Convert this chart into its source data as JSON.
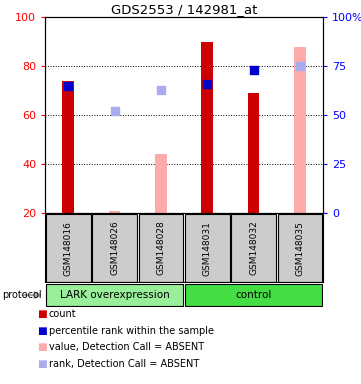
{
  "title": "GDS2553 / 142981_at",
  "samples": [
    "GSM148016",
    "GSM148026",
    "GSM148028",
    "GSM148031",
    "GSM148032",
    "GSM148035"
  ],
  "count_values": [
    74,
    null,
    null,
    90,
    69,
    null
  ],
  "count_color": "#cc0000",
  "percentile_values": [
    65,
    null,
    null,
    66,
    73,
    null
  ],
  "percentile_color": "#0000cc",
  "absent_value_values": [
    null,
    21,
    44,
    null,
    null,
    88
  ],
  "absent_value_color": "#ffaaaa",
  "absent_rank_values": [
    null,
    52,
    63,
    null,
    null,
    75
  ],
  "absent_rank_color": "#aaaaee",
  "ylim_left": [
    20,
    100
  ],
  "ylim_right": [
    0,
    100
  ],
  "yticks_left": [
    20,
    40,
    60,
    80,
    100
  ],
  "yticks_right": [
    0,
    25,
    50,
    75,
    100
  ],
  "yticklabels_right": [
    "0",
    "25",
    "50",
    "75",
    "100%"
  ],
  "bar_width": 0.25,
  "marker_size": 6,
  "group_lark_color": "#99ee99",
  "group_ctrl_color": "#44dd44",
  "sample_box_color": "#cccccc",
  "legend_items": [
    {
      "label": "count",
      "color": "#cc0000"
    },
    {
      "label": "percentile rank within the sample",
      "color": "#0000cc"
    },
    {
      "label": "value, Detection Call = ABSENT",
      "color": "#ffaaaa"
    },
    {
      "label": "rank, Detection Call = ABSENT",
      "color": "#aaaaee"
    }
  ]
}
